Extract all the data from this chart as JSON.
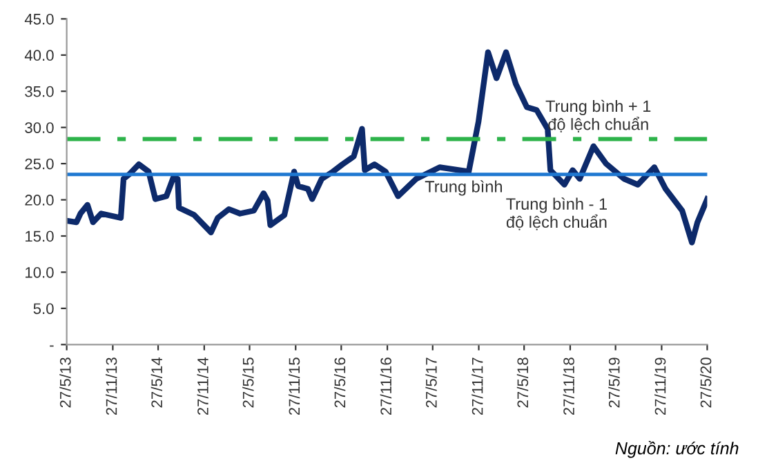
{
  "chart_data": {
    "type": "line",
    "x": [
      "2013-05-27",
      "2013-07-05",
      "2013-07-21",
      "2013-08-18",
      "2013-09-09",
      "2013-10-12",
      "2013-12-29",
      "2014-01-09",
      "2014-01-31",
      "2014-03-11",
      "2014-04-19",
      "2014-05-16",
      "2014-06-29",
      "2014-07-27",
      "2014-08-13",
      "2014-08-18",
      "2014-10-18",
      "2014-12-24",
      "2015-01-20",
      "2015-03-05",
      "2015-04-19",
      "2015-06-13",
      "2015-07-22",
      "2015-08-07",
      "2015-08-18",
      "2015-10-13",
      "2015-11-21",
      "2015-12-07",
      "2016-01-15",
      "2016-02-01",
      "2016-03-10",
      "2016-04-24",
      "2016-06-01",
      "2016-07-16",
      "2016-08-18",
      "2016-08-29",
      "2016-10-07",
      "2016-11-20",
      "2017-01-09",
      "2017-03-22",
      "2017-06-24",
      "2017-10-18",
      "2017-11-26",
      "2018-01-03",
      "2018-02-06",
      "2018-03-16",
      "2018-04-24",
      "2018-06-07",
      "2018-07-16",
      "2018-08-29",
      "2018-09-09",
      "2018-11-04",
      "2018-12-07",
      "2019-01-04",
      "2019-02-28",
      "2019-04-19",
      "2019-06-30",
      "2019-08-24",
      "2019-10-29",
      "2019-12-13",
      "2020-02-17",
      "2020-03-27",
      "2020-04-18",
      "2020-05-27"
    ],
    "series": [
      {
        "color": "#0d2a6b",
        "values": [
          17.1,
          16.9,
          18.1,
          19.3,
          16.9,
          18.1,
          17.5,
          22.9,
          23.5,
          24.9,
          23.9,
          20.1,
          20.5,
          23.1,
          22.9,
          18.9,
          17.9,
          15.5,
          17.5,
          18.7,
          18.1,
          18.5,
          20.9,
          19.9,
          16.5,
          17.9,
          23.9,
          21.9,
          21.5,
          20.1,
          22.9,
          23.9,
          24.9,
          26.0,
          29.8,
          24.1,
          24.9,
          23.9,
          20.5,
          22.9,
          24.5,
          23.9,
          30.8,
          40.4,
          36.8,
          40.4,
          36.0,
          32.8,
          32.4,
          29.8,
          24.1,
          22.1,
          24.1,
          22.9,
          27.4,
          25.0,
          22.9,
          22.1,
          24.5,
          21.5,
          18.5,
          14.1,
          16.9,
          20.1
        ]
      }
    ],
    "xlim": [
      "2013-05-27",
      "2020-05-27"
    ],
    "xticks": [
      {
        "value": "2013-05-27",
        "label": "27/5/13"
      },
      {
        "value": "2013-11-27",
        "label": "27/11/13"
      },
      {
        "value": "2014-05-27",
        "label": "27/5/14"
      },
      {
        "value": "2014-11-27",
        "label": "27/11/14"
      },
      {
        "value": "2015-05-27",
        "label": "27/5/15"
      },
      {
        "value": "2015-11-27",
        "label": "27/11/15"
      },
      {
        "value": "2016-05-27",
        "label": "27/5/16"
      },
      {
        "value": "2016-11-27",
        "label": "27/11/16"
      },
      {
        "value": "2017-05-27",
        "label": "27/5/17"
      },
      {
        "value": "2017-11-27",
        "label": "27/11/17"
      },
      {
        "value": "2018-05-27",
        "label": "27/5/18"
      },
      {
        "value": "2018-11-27",
        "label": "27/11/18"
      },
      {
        "value": "2019-05-27",
        "label": "27/5/19"
      },
      {
        "value": "2019-11-27",
        "label": "27/11/19"
      },
      {
        "value": "2020-05-27",
        "label": "27/5/20"
      }
    ],
    "ylim": [
      0,
      45
    ],
    "yticks": [
      {
        "value": 0,
        "label": "-"
      },
      {
        "value": 5,
        "label": "5.0"
      },
      {
        "value": 10,
        "label": "10.0"
      },
      {
        "value": 15,
        "label": "15.0"
      },
      {
        "value": 20,
        "label": "20.0"
      },
      {
        "value": 25,
        "label": "25.0"
      },
      {
        "value": 30,
        "label": "30.0"
      },
      {
        "value": 35,
        "label": "35.0"
      },
      {
        "value": 40,
        "label": "40.0"
      },
      {
        "value": 45,
        "label": "45.0"
      }
    ],
    "ref_lines": [
      {
        "axis": "y",
        "value": 23.5,
        "label": "Trung bình",
        "color": "#1f78d1",
        "line_style": "solid"
      },
      {
        "axis": "y",
        "value": 28.4,
        "label": "Trung bình + 1\nđộ lệch chuẩn",
        "color": "#2db34a",
        "line_style": "dashdot"
      }
    ],
    "annotations": [
      "Trung bình - 1\nđộ lệch chuẩn",
      "Nguồn: ước tính"
    ],
    "line_style": "solid",
    "marker": "none",
    "grid": false,
    "legend": false
  }
}
